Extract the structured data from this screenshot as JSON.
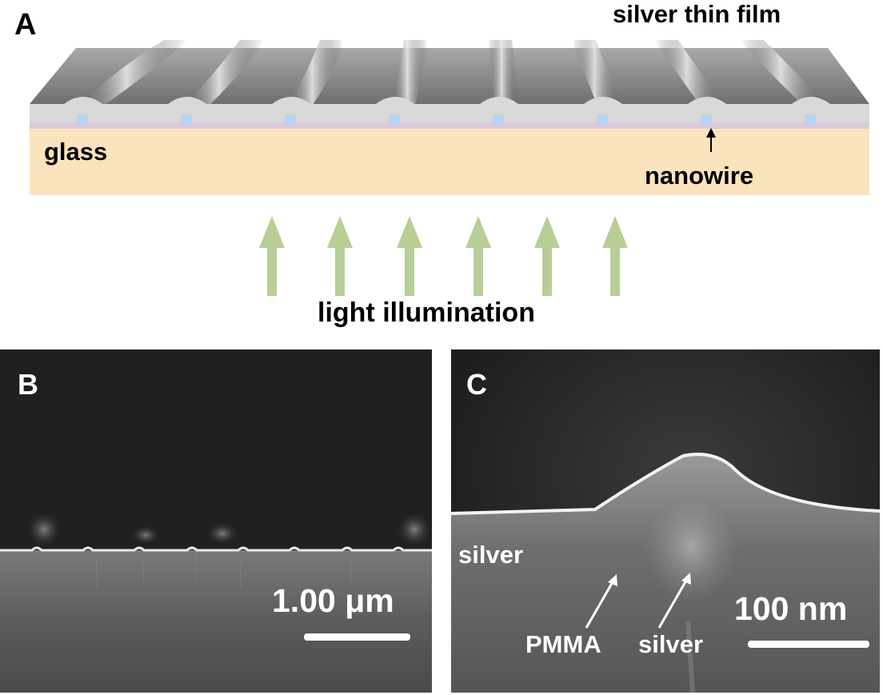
{
  "panel_a": {
    "letter": "A",
    "film_label": "silver thin film",
    "substrate_label": "glass",
    "nanowire_label": "nanowire",
    "light_label": "light illumination",
    "colors": {
      "glass": "#fbe3bd",
      "film": "#8c8c8c",
      "pmma": "#dcc8dc",
      "nanowire": "#b9d3ef",
      "arrow": "#b7cf96"
    }
  },
  "panel_b": {
    "letter": "B",
    "scale_text": "1.00 μm"
  },
  "panel_c": {
    "letter": "C",
    "scale_text": "100 nm",
    "label_silver_top": "silver",
    "label_pmma": "PMMA",
    "label_silver_bottom": "silver"
  }
}
